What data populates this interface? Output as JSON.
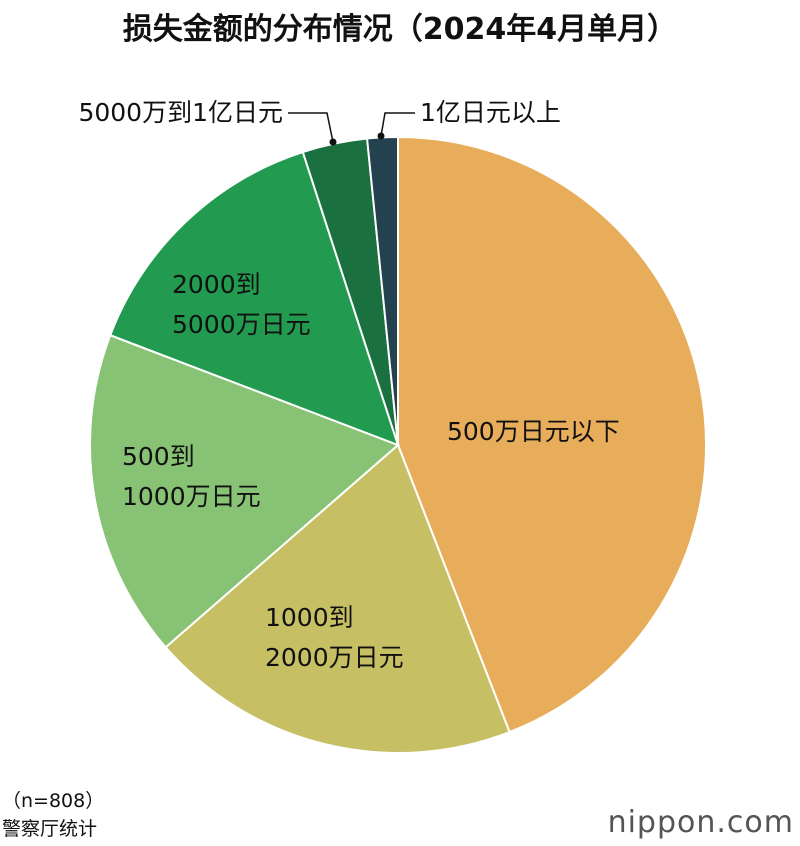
{
  "chart_data": {
    "type": "pie",
    "title": "损失金额的分布情况（2024年4月单月）",
    "categories": [
      "500万日元以下",
      "1000到\n2000万日元",
      "500到\n1000万日元",
      "2000到\n5000万日元",
      "5000万到1亿日元",
      "1亿日元以上"
    ],
    "values": [
      44.1,
      19.5,
      17.2,
      14.2,
      3.4,
      1.6
    ],
    "colors": [
      "#e8ad5a",
      "#c6bf64",
      "#88c274",
      "#229a50",
      "#1b7040",
      "#23414f"
    ],
    "annotations": [
      "（n=808）",
      "警察厅统计"
    ],
    "logo": "nippon.com"
  }
}
